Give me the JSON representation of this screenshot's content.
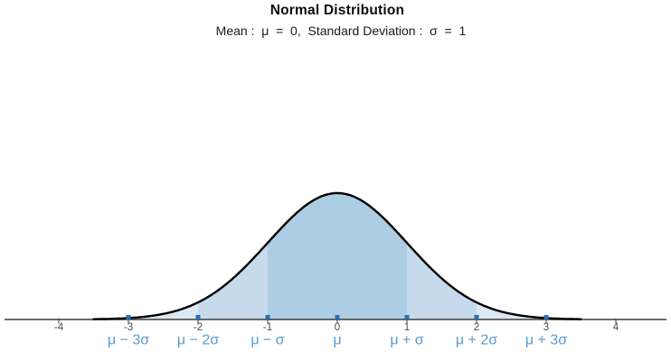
{
  "header": {
    "title": "Normal Distribution",
    "subtitle": "Mean :  μ  =  0,  Standard Deviation :  σ  =  1"
  },
  "chart_data": {
    "type": "area",
    "title": "Normal Distribution",
    "subtitle": "Mean :  μ  =  0,  Standard Deviation :  σ  =  1",
    "distribution": "normal",
    "mean": 0,
    "sd": 1,
    "peak_density": 0.3989,
    "x_domain": [
      -3.5,
      3.5
    ],
    "xlim": [
      -4.8,
      4.75
    ],
    "ylim": [
      0,
      0.42
    ],
    "grid": false,
    "legend": "none",
    "x_ticks": [
      {
        "value": -4,
        "label": "-4"
      },
      {
        "value": -3,
        "label": "-3"
      },
      {
        "value": -2,
        "label": "-2"
      },
      {
        "value": -1,
        "label": "-1"
      },
      {
        "value": 0,
        "label": "0"
      },
      {
        "value": 1,
        "label": "1"
      },
      {
        "value": 2,
        "label": "2"
      },
      {
        "value": 3,
        "label": "3"
      },
      {
        "value": 4,
        "label": "4"
      }
    ],
    "sigma_points": [
      {
        "value": -3,
        "label": "μ − 3σ"
      },
      {
        "value": -2,
        "label": "μ − 2σ"
      },
      {
        "value": -1,
        "label": "μ − σ"
      },
      {
        "value": 0,
        "label": "μ"
      },
      {
        "value": 1,
        "label": "μ + σ"
      },
      {
        "value": 2,
        "label": "μ + 2σ"
      },
      {
        "value": 3,
        "label": "μ + 3σ"
      }
    ],
    "regions": [
      {
        "from": -3,
        "to": -2,
        "fill": "#dce8f3"
      },
      {
        "from": -2,
        "to": -1,
        "fill": "#c7daec"
      },
      {
        "from": -1,
        "to": 1,
        "fill": "#adcde4"
      },
      {
        "from": 1,
        "to": 2,
        "fill": "#c7daec"
      },
      {
        "from": 2,
        "to": 3,
        "fill": "#dce8f3"
      }
    ],
    "colors": {
      "curve": "#000000",
      "axis": "#3a3a3a",
      "tick_label": "#4a4a4a",
      "point_marker": "#2373b5",
      "sigma_label": "#5b9bce"
    }
  }
}
